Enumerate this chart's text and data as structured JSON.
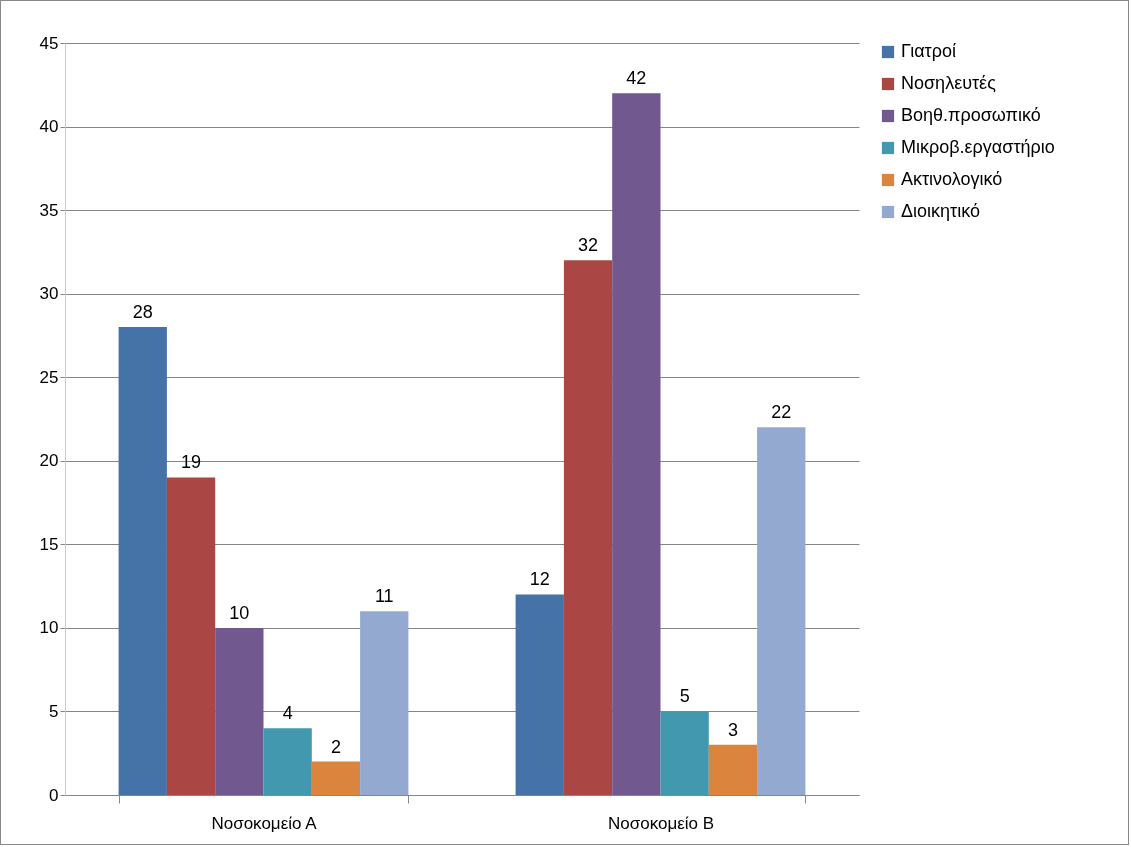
{
  "chart_data": {
    "type": "bar",
    "categories": [
      "Νοσοκομείο Α",
      "Νοσοκομείο Β"
    ],
    "series": [
      {
        "name": "Γιατροί",
        "color": "#4572a7",
        "values": [
          28,
          12
        ]
      },
      {
        "name": "Νοσηλευτές",
        "color": "#aa4643",
        "values": [
          19,
          32
        ]
      },
      {
        "name": "Βοηθ.προσωπικό",
        "color": "#71588f",
        "values": [
          10,
          42
        ]
      },
      {
        "name": "Μικροβ.εργαστήριο",
        "color": "#4198af",
        "values": [
          4,
          5
        ]
      },
      {
        "name": "Ακτινολογικό",
        "color": "#db843d",
        "values": [
          2,
          3
        ]
      },
      {
        "name": "Διοικητικό",
        "color": "#93a9cf",
        "values": [
          11,
          22
        ]
      }
    ],
    "ylim": [
      0,
      45
    ],
    "yticks": [
      0,
      5,
      10,
      15,
      20,
      25,
      30,
      35,
      40,
      45
    ],
    "grid": "y",
    "legend": "right",
    "data_labels": true
  }
}
